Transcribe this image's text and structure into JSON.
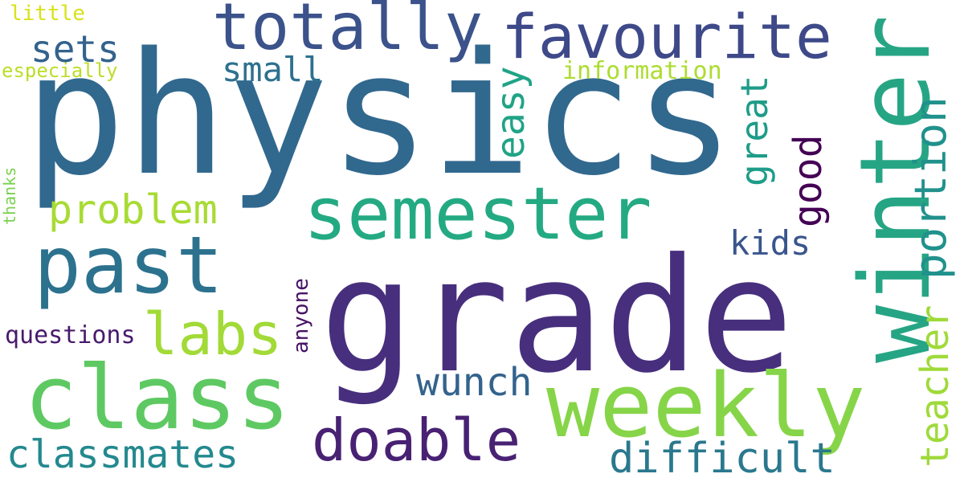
{
  "words": {
    "physics": "physics",
    "grade": "grade",
    "winter": "winter",
    "weekly": "weekly",
    "class": "class",
    "past": "past",
    "semester": "semester",
    "totally": "totally",
    "favourite": "favourite",
    "labs": "labs",
    "doable": "doable",
    "portion": "portion",
    "difficult": "difficult",
    "problem": "problem",
    "classmates": "classmates",
    "wunch": "wunch",
    "teacher": "teacher",
    "easy": "easy",
    "good": "good",
    "great": "great",
    "sets": "sets",
    "kids": "kids",
    "small": "small",
    "information": "information",
    "questions": "questions",
    "anyone": "anyone",
    "little": "little",
    "especially": "especially",
    "thanks": "thanks"
  },
  "colors": {
    "background": "#ffffff",
    "palette": "viridis"
  }
}
